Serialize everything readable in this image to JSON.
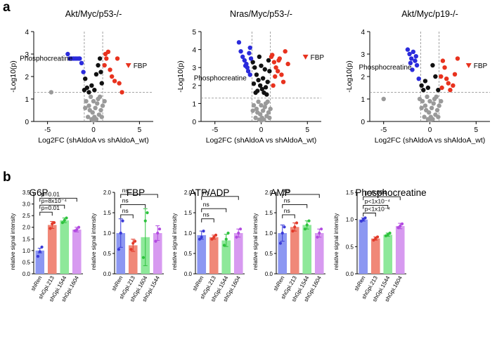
{
  "panel_labels": {
    "a": "a",
    "b": "b"
  },
  "colors": {
    "down": "#2b2bdc",
    "up": "#e8321e",
    "mid": "#111111",
    "ns": "#9a9a9a",
    "fbp_marker": "#e8321e",
    "threshold": "#8a8a8a",
    "bar_shRen": "#8c97f2",
    "bar_shGpi213": "#f08878",
    "bar_shGpi1544": "#8ee89a",
    "bar_shGpi1604": "#d79af0",
    "dot_shRen": "#3a3ad8",
    "dot_shGpi213": "#e23a2a",
    "dot_shGpi1544": "#2ec23e",
    "dot_shGpi1604": "#b24ae0"
  },
  "chart_data": [
    {
      "type": "scatter",
      "panel": "a",
      "title": "Akt/Myc/p53-/-",
      "xlabel": "Log2FC (shAldoA vs shAldoA_wt)",
      "ylabel": "-Log10(p)",
      "xlim": [
        -6.5,
        6.5
      ],
      "ylim": [
        0,
        4
      ],
      "xticks": [
        -5,
        0,
        5
      ],
      "yticks": [
        0,
        1,
        2,
        3,
        4
      ],
      "threshold_y": 1.3,
      "threshold_x": [
        -1,
        1
      ],
      "annotation_label": "Phosphocreatine",
      "annotation_point": {
        "x": -2.2,
        "y": 2.8
      },
      "fbp_label": "FBP",
      "fbp_point": {
        "x": 3.8,
        "y": 2.5
      },
      "points_down": [
        [
          -2.8,
          3.0
        ],
        [
          -2.6,
          2.8
        ],
        [
          -2.4,
          2.8
        ],
        [
          -2.2,
          2.8
        ],
        [
          -2.0,
          2.8
        ],
        [
          -1.8,
          2.8
        ],
        [
          -1.6,
          2.8
        ],
        [
          -1.5,
          2.8
        ],
        [
          -1.3,
          2.6
        ],
        [
          -1.1,
          2.2
        ]
      ],
      "points_up": [
        [
          1.2,
          2.5
        ],
        [
          1.4,
          2.8
        ],
        [
          1.6,
          3.1
        ],
        [
          1.8,
          2.3
        ],
        [
          2.0,
          2.0
        ],
        [
          2.3,
          1.8
        ],
        [
          2.6,
          2.8
        ],
        [
          2.8,
          1.7
        ],
        [
          3.1,
          1.3
        ],
        [
          1.3,
          3.0
        ]
      ],
      "points_mid": [
        [
          -0.9,
          1.9
        ],
        [
          -0.7,
          1.5
        ],
        [
          -0.5,
          1.3
        ],
        [
          -0.2,
          1.6
        ],
        [
          0.1,
          1.4
        ],
        [
          0.3,
          2.1
        ],
        [
          0.5,
          2.5
        ],
        [
          0.7,
          2.8
        ],
        [
          0.9,
          1.7
        ],
        [
          0.8,
          2.2
        ],
        [
          -1.0,
          1.4
        ]
      ],
      "points_ns": [
        [
          -4.6,
          1.3
        ],
        [
          -0.8,
          0.9
        ],
        [
          -0.5,
          0.7
        ],
        [
          -0.3,
          1.1
        ],
        [
          0.0,
          0.9
        ],
        [
          0.2,
          0.6
        ],
        [
          0.4,
          0.8
        ],
        [
          -0.1,
          0.4
        ],
        [
          0.6,
          0.3
        ],
        [
          0.8,
          0.5
        ],
        [
          -0.6,
          0.2
        ],
        [
          1.0,
          0.7
        ],
        [
          0.3,
          0.1
        ],
        [
          -0.2,
          0.1
        ],
        [
          0.5,
          1.0
        ],
        [
          -0.4,
          0.5
        ],
        [
          0.1,
          0.2
        ],
        [
          0.7,
          1.1
        ],
        [
          1.2,
          0.9
        ],
        [
          -0.9,
          0.6
        ],
        [
          0.0,
          0.05
        ],
        [
          0.9,
          0.2
        ]
      ]
    },
    {
      "type": "scatter",
      "panel": "a",
      "title": "Nras/Myc/p53-/-",
      "xlabel": "Log2FC (shAldoA vs shAldoA_wt)",
      "ylabel": "-Log10(p)",
      "xlim": [
        -6.5,
        6.5
      ],
      "ylim": [
        0,
        5
      ],
      "xticks": [
        -5,
        0,
        5
      ],
      "yticks": [
        0,
        1,
        2,
        3,
        4,
        5
      ],
      "threshold_y": 1.3,
      "threshold_x": [
        -1,
        1
      ],
      "annotation_label": "Phosphocreatine",
      "annotation_point": {
        "x": -1.5,
        "y": 2.4
      },
      "fbp_label": "FBP",
      "fbp_point": {
        "x": 4.8,
        "y": 3.6
      },
      "points_down": [
        [
          -2.4,
          4.4
        ],
        [
          -2.2,
          3.9
        ],
        [
          -2.0,
          3.6
        ],
        [
          -1.8,
          3.4
        ],
        [
          -1.6,
          3.2
        ],
        [
          -1.5,
          3.0
        ],
        [
          -1.3,
          3.8
        ],
        [
          -1.2,
          2.6
        ],
        [
          -1.4,
          2.8
        ],
        [
          -1.1,
          3.5
        ],
        [
          -1.7,
          3.1
        ],
        [
          -1.2,
          4.1
        ]
      ],
      "points_up": [
        [
          1.2,
          3.7
        ],
        [
          1.4,
          3.3
        ],
        [
          1.6,
          3.0
        ],
        [
          1.8,
          2.8
        ],
        [
          2.0,
          3.5
        ],
        [
          2.2,
          2.6
        ],
        [
          2.4,
          2.2
        ],
        [
          2.6,
          3.9
        ],
        [
          1.5,
          2.5
        ],
        [
          1.3,
          2.0
        ],
        [
          2.9,
          3.2
        ],
        [
          1.9,
          3.4
        ],
        [
          1.1,
          3.6
        ]
      ],
      "points_mid": [
        [
          -0.9,
          3.3
        ],
        [
          -0.7,
          3.0
        ],
        [
          -0.5,
          2.6
        ],
        [
          -0.3,
          2.3
        ],
        [
          -0.1,
          2.0
        ],
        [
          0.1,
          1.8
        ],
        [
          0.3,
          1.6
        ],
        [
          0.5,
          1.9
        ],
        [
          0.7,
          2.2
        ],
        [
          0.9,
          2.8
        ],
        [
          -0.8,
          2.1
        ],
        [
          -0.4,
          1.7
        ],
        [
          0.2,
          2.4
        ],
        [
          0.6,
          1.5
        ],
        [
          -0.6,
          1.6
        ],
        [
          0.8,
          3.4
        ],
        [
          0.4,
          2.9
        ],
        [
          -0.2,
          3.6
        ],
        [
          0.0,
          3.1
        ]
      ],
      "points_ns": [
        [
          -0.8,
          0.9
        ],
        [
          -0.5,
          0.7
        ],
        [
          -0.3,
          1.1
        ],
        [
          0.0,
          0.9
        ],
        [
          0.2,
          0.6
        ],
        [
          0.4,
          0.8
        ],
        [
          -0.1,
          0.4
        ],
        [
          0.6,
          0.3
        ],
        [
          0.8,
          0.5
        ],
        [
          -0.6,
          0.2
        ],
        [
          1.0,
          0.7
        ],
        [
          0.3,
          0.1
        ],
        [
          -0.2,
          0.1
        ],
        [
          0.5,
          1.0
        ],
        [
          -0.4,
          0.5
        ],
        [
          0.1,
          0.2
        ],
        [
          0.7,
          1.1
        ],
        [
          -0.9,
          0.6
        ],
        [
          0.0,
          0.05
        ],
        [
          0.9,
          0.2
        ]
      ]
    },
    {
      "type": "scatter",
      "panel": "a",
      "title": "Akt/Myc/p19-/-",
      "xlabel": "Log2FC (shAldoA vs shAldoA_wt)",
      "ylabel": "-Log10(p)",
      "xlim": [
        -6.5,
        6.5
      ],
      "ylim": [
        0,
        4
      ],
      "xticks": [
        -5,
        0,
        5
      ],
      "yticks": [
        0,
        1,
        2,
        3,
        4
      ],
      "threshold_y": 1.3,
      "threshold_x": [
        -1,
        1
      ],
      "annotation_label": "Phosphocreatine",
      "annotation_point": {
        "x": -1.9,
        "y": 2.4
      },
      "fbp_label": "FBP",
      "fbp_point": {
        "x": 4.2,
        "y": 2.5
      },
      "points_down": [
        [
          -2.4,
          3.2
        ],
        [
          -2.2,
          3.0
        ],
        [
          -2.0,
          2.8
        ],
        [
          -1.8,
          3.1
        ],
        [
          -1.6,
          2.7
        ],
        [
          -1.4,
          2.5
        ],
        [
          -2.1,
          2.6
        ],
        [
          -1.9,
          2.3
        ],
        [
          -1.5,
          2.9
        ],
        [
          -1.2,
          1.9
        ]
      ],
      "points_up": [
        [
          1.2,
          2.0
        ],
        [
          1.4,
          2.7
        ],
        [
          1.6,
          2.4
        ],
        [
          1.8,
          1.9
        ],
        [
          2.0,
          1.7
        ],
        [
          2.2,
          1.4
        ],
        [
          2.5,
          1.6
        ],
        [
          3.0,
          2.8
        ],
        [
          1.3,
          1.5
        ],
        [
          2.7,
          2.1
        ]
      ],
      "points_mid": [
        [
          -0.9,
          1.6
        ],
        [
          -0.7,
          1.4
        ],
        [
          -0.5,
          1.8
        ],
        [
          -0.2,
          1.5
        ],
        [
          0.3,
          2.5
        ],
        [
          0.6,
          2.0
        ],
        [
          0.9,
          1.4
        ]
      ],
      "points_ns": [
        [
          -5.0,
          1.0
        ],
        [
          -0.8,
          0.9
        ],
        [
          -0.5,
          0.7
        ],
        [
          -0.3,
          1.1
        ],
        [
          0.0,
          0.9
        ],
        [
          0.2,
          0.6
        ],
        [
          0.4,
          0.8
        ],
        [
          -0.1,
          0.4
        ],
        [
          0.6,
          0.3
        ],
        [
          0.8,
          0.5
        ],
        [
          -0.6,
          0.2
        ],
        [
          1.0,
          0.7
        ],
        [
          0.3,
          0.1
        ],
        [
          -0.2,
          0.1
        ],
        [
          0.5,
          1.0
        ],
        [
          -0.4,
          0.5
        ],
        [
          0.1,
          0.2
        ],
        [
          0.7,
          1.1
        ],
        [
          1.2,
          0.9
        ],
        [
          -0.9,
          0.6
        ],
        [
          0.0,
          0.05
        ],
        [
          0.9,
          0.2
        ],
        [
          -1.1,
          1.0
        ]
      ]
    },
    {
      "type": "bar",
      "panel": "b",
      "title": "G6P",
      "ylabel": "relative signal intensity",
      "ylim": [
        0,
        3.5
      ],
      "yticks": [
        0,
        0.5,
        1.0,
        1.5,
        2.0,
        2.5,
        3.0,
        3.5
      ],
      "categories": [
        "shRen",
        "shGpi.213",
        "shGpi.1544",
        "shGpi.1604"
      ],
      "values": [
        1.0,
        2.1,
        2.3,
        1.9
      ],
      "errors": [
        0.1,
        0.15,
        0.1,
        0.1
      ],
      "points": [
        [
          0.75,
          0.95,
          1.15
        ],
        [
          1.95,
          2.15,
          2.2
        ],
        [
          2.2,
          2.3,
          2.4
        ],
        [
          1.85,
          1.9,
          2.0
        ]
      ],
      "comparisons": [
        {
          "to": 1,
          "label": "p=0.01",
          "y": 2.65
        },
        {
          "to": 2,
          "label": "p=8x10⁻⁴",
          "y": 2.95
        },
        {
          "to": 3,
          "label": "p=0.01",
          "y": 3.25
        }
      ]
    },
    {
      "type": "bar",
      "panel": "b",
      "title": "FBP",
      "ylabel": "relative signal intensity",
      "ylim": [
        0,
        2.0
      ],
      "yticks": [
        0,
        0.5,
        1.0,
        1.5,
        2.0
      ],
      "categories": [
        "shRen",
        "shGpi.213",
        "shGpi.1604",
        "shGpi.1544"
      ],
      "values": [
        1.0,
        0.7,
        0.9,
        1.0
      ],
      "errors": [
        0.35,
        0.15,
        0.7,
        0.18
      ],
      "points": [
        [
          0.6,
          1.0,
          1.3
        ],
        [
          0.6,
          0.75,
          0.8
        ],
        [
          0.4,
          1.3,
          1.5
        ],
        [
          0.8,
          1.0,
          1.1
        ]
      ],
      "comparisons": [
        {
          "to": 1,
          "label": "ns",
          "y": 1.45
        },
        {
          "to": 2,
          "label": "ns",
          "y": 1.7
        },
        {
          "to": 3,
          "label": "ns",
          "y": 1.95
        }
      ]
    },
    {
      "type": "bar",
      "panel": "b",
      "title": "ATP/ADP",
      "ylabel": "relative signal intensity",
      "ylim": [
        0,
        2.0
      ],
      "yticks": [
        0,
        0.5,
        1.0,
        1.5,
        2.0
      ],
      "categories": [
        "shRen",
        "shGpi.213",
        "shGpi.1544",
        "shGpi.1604"
      ],
      "values": [
        0.95,
        0.9,
        0.82,
        1.0
      ],
      "errors": [
        0.1,
        0.05,
        0.15,
        0.1
      ],
      "points": [
        [
          0.85,
          0.9,
          1.05
        ],
        [
          0.85,
          0.9,
          0.95
        ],
        [
          0.7,
          0.85,
          1.0
        ],
        [
          0.9,
          1.0,
          1.1
        ]
      ],
      "comparisons": [
        {
          "to": 1,
          "label": "ns",
          "y": 1.35
        },
        {
          "to": 2,
          "label": "ns",
          "y": 1.6
        },
        {
          "to": 3,
          "label": "ns",
          "y": 1.9
        }
      ]
    },
    {
      "type": "bar",
      "panel": "b",
      "title": "AMP",
      "ylabel": "relative signal intensity",
      "ylim": [
        0,
        2.0
      ],
      "yticks": [
        0,
        0.5,
        1.0,
        1.5,
        2.0
      ],
      "categories": [
        "shRen",
        "shGpi.213",
        "shGpi.1544",
        "shGpi.1604"
      ],
      "values": [
        1.0,
        1.15,
        1.2,
        1.0
      ],
      "errors": [
        0.2,
        0.1,
        0.1,
        0.1
      ],
      "points": [
        [
          0.75,
          1.0,
          1.15
        ],
        [
          1.05,
          1.15,
          1.25
        ],
        [
          1.1,
          1.2,
          1.3
        ],
        [
          0.9,
          1.0,
          1.1
        ]
      ],
      "comparisons": [
        {
          "to": 1,
          "label": "ns",
          "y": 1.45
        },
        {
          "to": 2,
          "label": "ns",
          "y": 1.7
        },
        {
          "to": 3,
          "label": "ns",
          "y": 1.95
        }
      ]
    },
    {
      "type": "bar",
      "panel": "b",
      "title": "Phosphocreatine",
      "ylabel": "relative signal intensity",
      "ylim": [
        0,
        1.5
      ],
      "yticks": [
        0,
        0.5,
        1.0,
        1.5
      ],
      "categories": [
        "shRen",
        "shGpi.213",
        "shGpi.1544",
        "shGpi.1604"
      ],
      "values": [
        1.0,
        0.65,
        0.72,
        0.88
      ],
      "errors": [
        0.03,
        0.03,
        0.03,
        0.05
      ],
      "points": [
        [
          0.97,
          1.0,
          1.03
        ],
        [
          0.62,
          0.65,
          0.68
        ],
        [
          0.7,
          0.72,
          0.75
        ],
        [
          0.85,
          0.88,
          0.92
        ]
      ],
      "comparisons": [
        {
          "to": 1,
          "label": "p<1x10⁻⁴",
          "y": 1.12
        },
        {
          "to": 2,
          "label": "p<1x10⁻⁴",
          "y": 1.26
        },
        {
          "to": 3,
          "label": "p=0.004",
          "y": 1.42
        }
      ]
    }
  ]
}
